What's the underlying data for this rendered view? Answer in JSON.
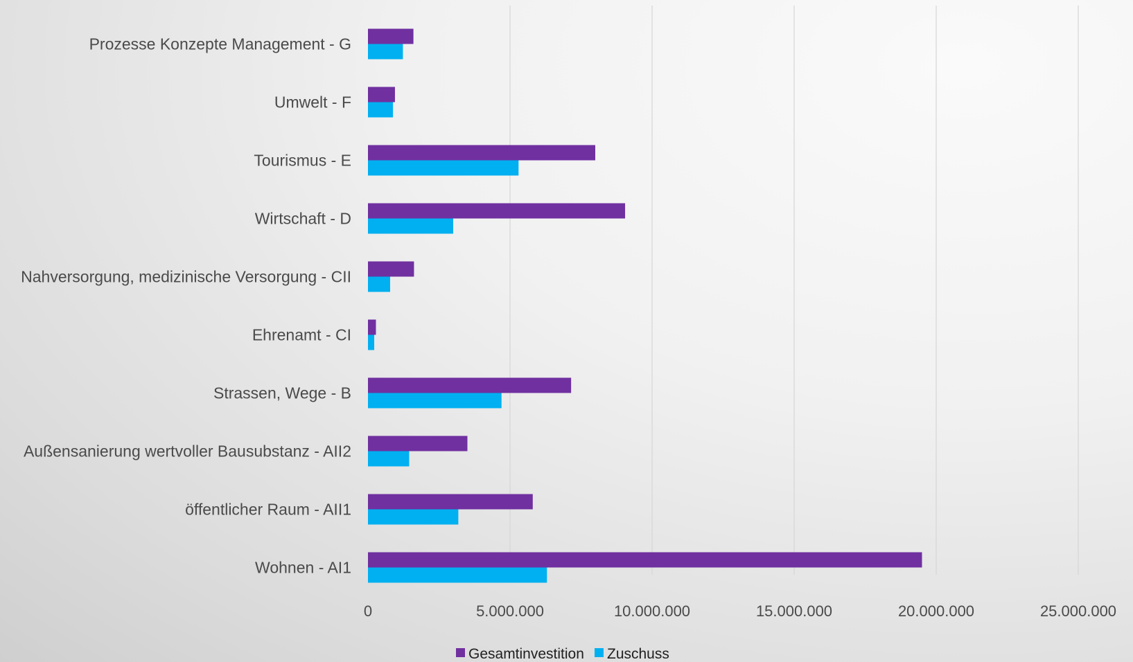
{
  "chart_data": {
    "type": "bar",
    "orientation": "horizontal",
    "categories": [
      "Prozesse Konzepte Management - G",
      "Umwelt - F",
      "Tourismus - E",
      "Wirtschaft - D",
      "Nahversorgung, medizinische Versorgung - CII",
      "Ehrenamt - CI",
      "Strassen, Wege - B",
      "Außensanierung wertvoller Bausubstanz - AII2",
      "öffentlicher Raum  - AII1",
      "Wohnen  - AI1"
    ],
    "series": [
      {
        "name": "Gesamtinvestition",
        "color": "#7030a0",
        "values": [
          1600000,
          950000,
          8000000,
          9050000,
          1620000,
          280000,
          7150000,
          3500000,
          5800000,
          19500000
        ]
      },
      {
        "name": "Zuschuss",
        "color": "#00b0f0",
        "values": [
          1230000,
          880000,
          5300000,
          3000000,
          780000,
          220000,
          4700000,
          1450000,
          3180000,
          6300000
        ]
      }
    ],
    "x_ticks": [
      "0",
      "5.000.000",
      "10.000.000",
      "15.000.000",
      "20.000.000",
      "25.000.000"
    ],
    "x_tick_values": [
      0,
      5000000,
      10000000,
      15000000,
      20000000,
      25000000
    ],
    "xlim": [
      0,
      25000000
    ],
    "grid": "vertical",
    "legend_position": "bottom"
  }
}
